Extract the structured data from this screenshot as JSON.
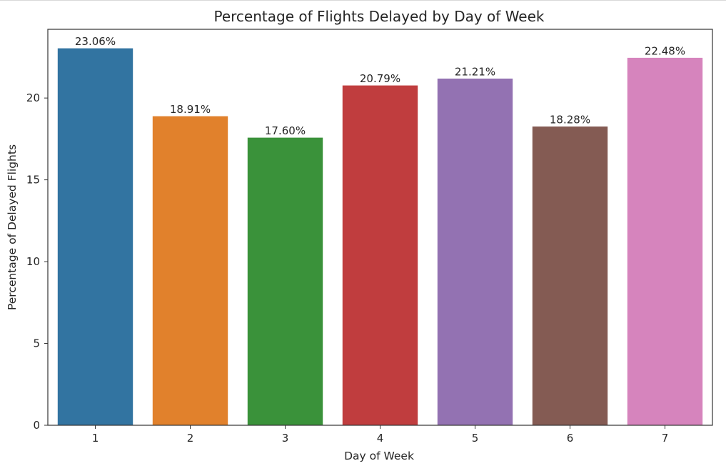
{
  "chart_data": {
    "type": "bar",
    "title": "Percentage of Flights Delayed by Day of Week",
    "xlabel": "Day of Week",
    "ylabel": "Percentage of Delayed Flights",
    "categories": [
      "1",
      "2",
      "3",
      "4",
      "5",
      "6",
      "7"
    ],
    "values": [
      23.06,
      18.91,
      17.6,
      20.79,
      21.21,
      18.28,
      22.48
    ],
    "value_labels": [
      "23.06%",
      "18.91%",
      "17.60%",
      "20.79%",
      "21.21%",
      "18.28%",
      "22.48%"
    ],
    "colors": [
      "#3274a1",
      "#e1812c",
      "#3a923a",
      "#c03d3e",
      "#9372b2",
      "#845b53",
      "#d684bd"
    ],
    "yticks": [
      0,
      5,
      10,
      15,
      20
    ],
    "ylim": [
      0,
      24.2
    ],
    "grid": false,
    "legend": "none"
  }
}
